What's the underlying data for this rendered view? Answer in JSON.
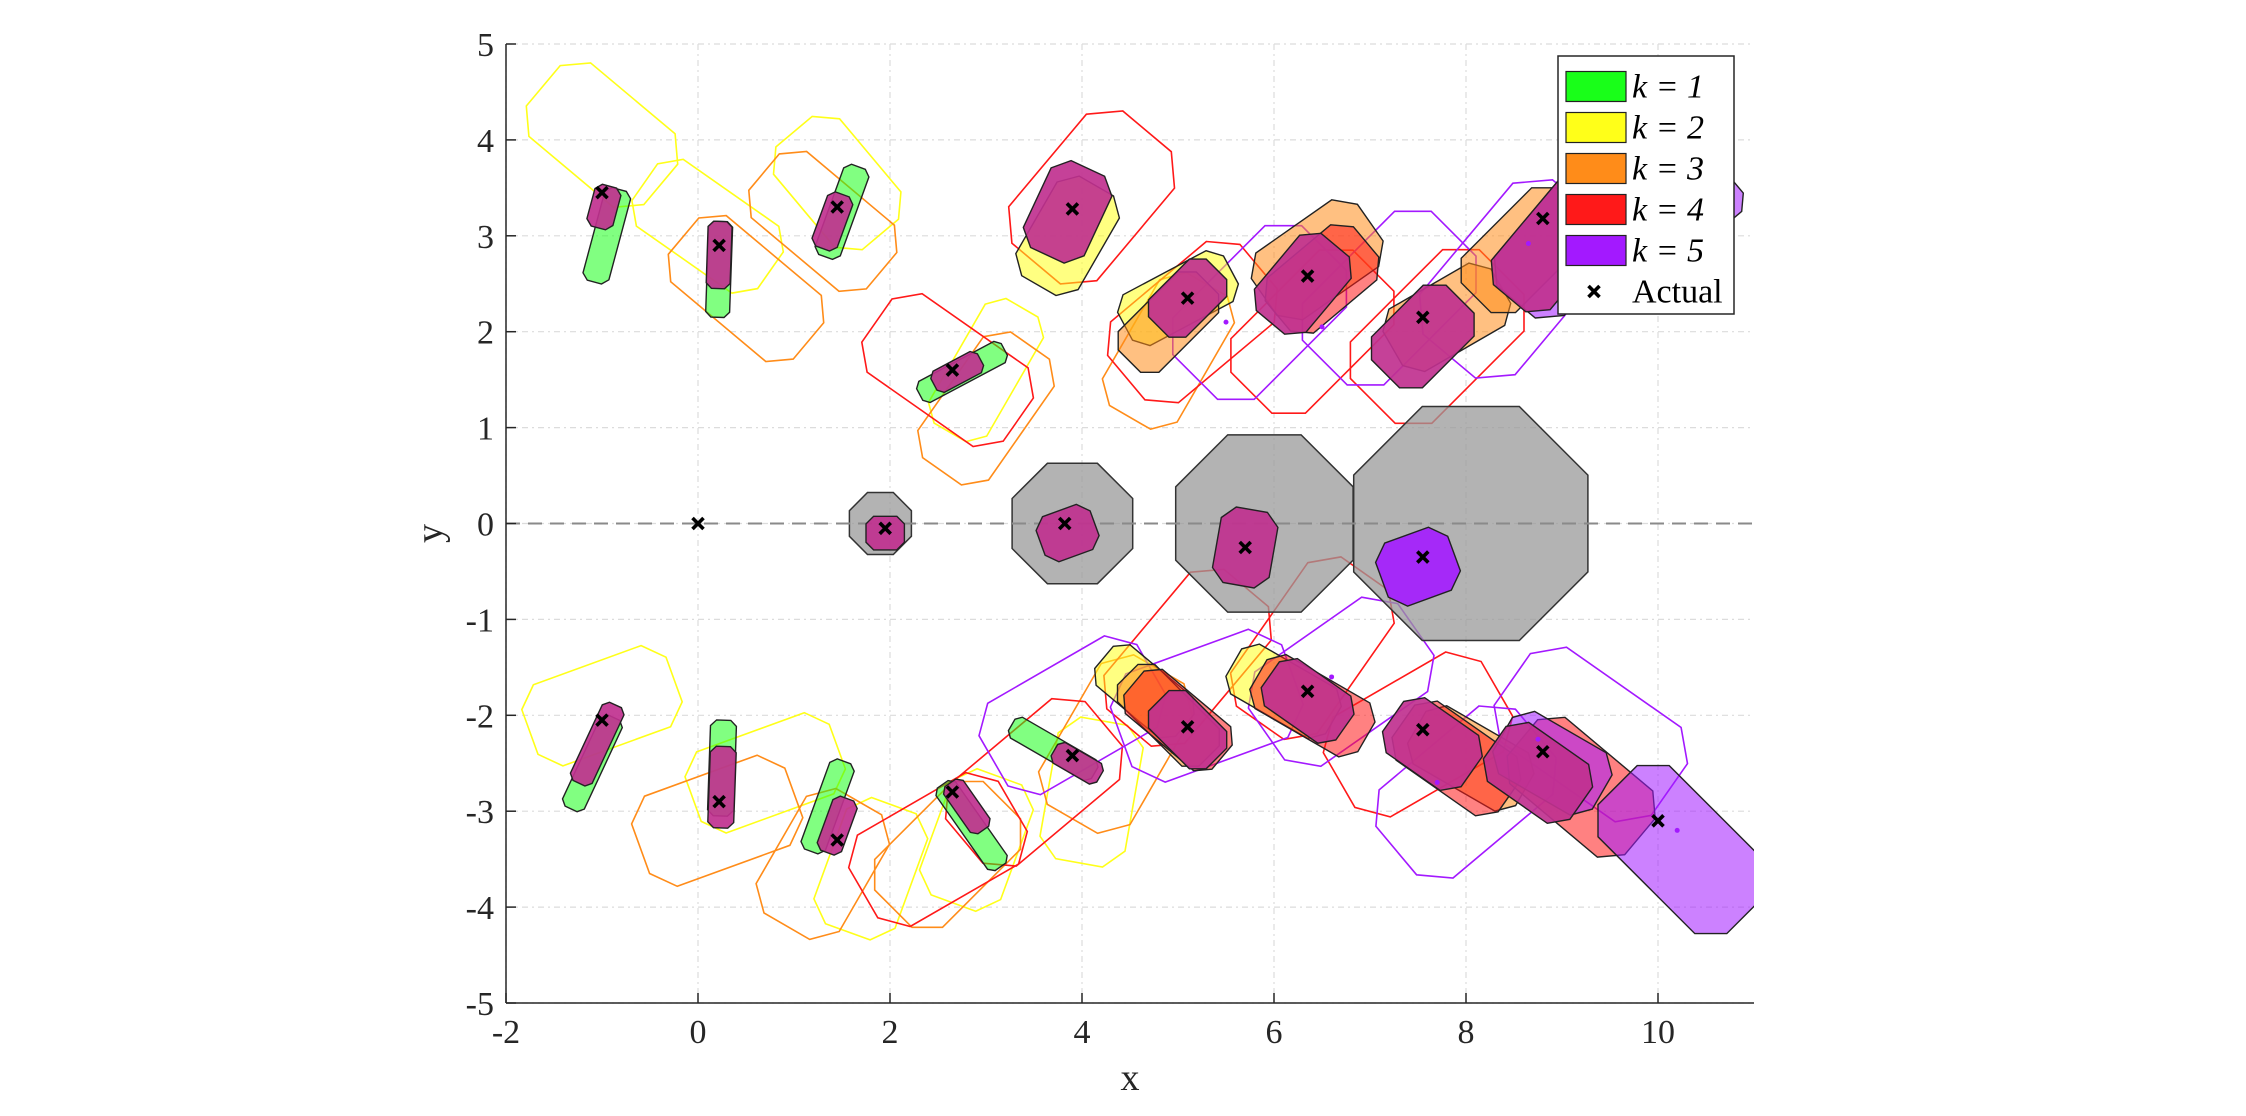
{
  "chart_data": {
    "type": "scatter",
    "xlabel": "x",
    "ylabel": "y",
    "xlim": [
      -2,
      11
    ],
    "ylim": [
      -5,
      5
    ],
    "xticks": [
      -2,
      0,
      2,
      4,
      6,
      8,
      10
    ],
    "yticks": [
      -5,
      -4,
      -3,
      -2,
      -1,
      0,
      1,
      2,
      3,
      4,
      5
    ],
    "xtick_labels": [
      "-2",
      "0",
      "2",
      "4",
      "6",
      "8",
      "10"
    ],
    "ytick_labels": [
      "-5",
      "-4",
      "-3",
      "-2",
      "-1",
      "0",
      "1",
      "2",
      "3",
      "4",
      "5"
    ],
    "grid": true,
    "reference_line": {
      "y": 0,
      "style": "dashed"
    },
    "legend_placement": "top-right",
    "legend": [
      {
        "label": "k = 1",
        "color": "#19ff19"
      },
      {
        "label": "k = 2",
        "color": "#ffff19"
      },
      {
        "label": "k = 3",
        "color": "#ff8c19"
      },
      {
        "label": "k = 4",
        "color": "#ff1919"
      },
      {
        "label": "k = 5",
        "color": "#a319ff"
      },
      {
        "label": "Actual",
        "marker": "x"
      }
    ],
    "overlap_color": "#c0318f",
    "uncertainty_polygons": [
      {
        "center": [
          1.9,
          0
        ],
        "radius": 0.35,
        "sides": 8,
        "color": "#999999"
      },
      {
        "center": [
          3.9,
          0
        ],
        "radius": 0.68,
        "sides": 8,
        "color": "#999999"
      },
      {
        "center": [
          5.9,
          0
        ],
        "radius": 1.0,
        "sides": 8,
        "color": "#999999"
      },
      {
        "center": [
          8.05,
          0
        ],
        "radius": 1.32,
        "sides": 8,
        "color": "#999999"
      }
    ],
    "actual_positions": [
      {
        "x": 0,
        "y": 0
      },
      {
        "x": -1.0,
        "y": 3.45
      },
      {
        "x": 0.22,
        "y": 2.9
      },
      {
        "x": 1.45,
        "y": 3.3
      },
      {
        "x": 2.65,
        "y": 1.6
      },
      {
        "x": 3.9,
        "y": 3.28
      },
      {
        "x": 5.1,
        "y": 2.35
      },
      {
        "x": 6.35,
        "y": 2.58
      },
      {
        "x": 7.55,
        "y": 2.15
      },
      {
        "x": 8.8,
        "y": 3.18
      },
      {
        "x": 1.95,
        "y": -0.05
      },
      {
        "x": 3.82,
        "y": 0
      },
      {
        "x": 5.7,
        "y": -0.25
      },
      {
        "x": 7.55,
        "y": -0.35
      },
      {
        "x": -1.0,
        "y": -2.05
      },
      {
        "x": 0.22,
        "y": -2.9
      },
      {
        "x": 1.45,
        "y": -3.3
      },
      {
        "x": 2.65,
        "y": -2.8
      },
      {
        "x": 3.9,
        "y": -2.42
      },
      {
        "x": 5.1,
        "y": -2.12
      },
      {
        "x": 6.35,
        "y": -1.75
      },
      {
        "x": 7.55,
        "y": -2.15
      },
      {
        "x": 8.8,
        "y": -2.38
      },
      {
        "x": 10.0,
        "y": -3.1
      }
    ],
    "estimates": [
      {
        "k": 1,
        "x": -0.95,
        "y": 3.0,
        "len": 1.0,
        "wid": 0.28,
        "angle": 75
      },
      {
        "k": 1,
        "x": 0.22,
        "y": 2.65,
        "len": 1.0,
        "wid": 0.25,
        "angle": 88
      },
      {
        "k": 1,
        "x": 1.5,
        "y": 3.25,
        "len": 1.0,
        "wid": 0.28,
        "angle": 70
      },
      {
        "k": 1,
        "x": 2.75,
        "y": 1.58,
        "len": 1.0,
        "wid": 0.25,
        "angle": 28
      },
      {
        "k": 1,
        "x": -1.1,
        "y": -2.5,
        "len": 1.05,
        "wid": 0.25,
        "angle": 65
      },
      {
        "k": 1,
        "x": 0.25,
        "y": -2.55,
        "len": 1.0,
        "wid": 0.27,
        "angle": 88
      },
      {
        "k": 1,
        "x": 1.35,
        "y": -2.95,
        "len": 1.0,
        "wid": 0.27,
        "angle": 70
      },
      {
        "k": 1,
        "x": 2.85,
        "y": -3.15,
        "len": 1.05,
        "wid": 0.25,
        "angle": -55
      },
      {
        "k": 1,
        "x": 3.7,
        "y": -2.35,
        "len": 1.0,
        "wid": 0.25,
        "angle": -30
      },
      {
        "k": 2,
        "x": 3.85,
        "y": 3.0,
        "len": 1.2,
        "wid": 0.75,
        "angle": 60
      },
      {
        "k": 2,
        "x": 5.0,
        "y": 2.35,
        "len": 1.25,
        "wid": 0.6,
        "angle": 28
      },
      {
        "k": 2,
        "x": 4.65,
        "y": -1.75,
        "len": 1.1,
        "wid": 0.55,
        "angle": -40
      },
      {
        "k": 2,
        "x": 6.1,
        "y": -1.75,
        "len": 1.2,
        "wid": 0.6,
        "angle": -30
      },
      {
        "k": 3,
        "x": 4.9,
        "y": 2.1,
        "len": 1.15,
        "wid": 0.6,
        "angle": 45
      },
      {
        "k": 3,
        "x": 6.45,
        "y": 2.75,
        "len": 1.35,
        "wid": 0.85,
        "angle": 35
      },
      {
        "k": 3,
        "x": 7.8,
        "y": 2.15,
        "len": 1.3,
        "wid": 0.75,
        "angle": 30
      },
      {
        "k": 3,
        "x": 8.6,
        "y": 2.85,
        "len": 1.4,
        "wid": 0.8,
        "angle": 45
      },
      {
        "k": 3,
        "x": 4.9,
        "y": -2.0,
        "len": 1.2,
        "wid": 0.55,
        "angle": -45
      },
      {
        "k": 3,
        "x": 8.05,
        "y": -2.45,
        "len": 1.3,
        "wid": 0.7,
        "angle": -30
      },
      {
        "k": 4,
        "x": 6.5,
        "y": 2.55,
        "len": 1.2,
        "wid": 0.75,
        "angle": 40
      },
      {
        "k": 4,
        "x": 5.0,
        "y": -2.05,
        "len": 1.2,
        "wid": 0.6,
        "angle": -40
      },
      {
        "k": 4,
        "x": 6.4,
        "y": -1.9,
        "len": 1.3,
        "wid": 0.65,
        "angle": -30
      },
      {
        "k": 4,
        "x": 7.9,
        "y": -2.45,
        "len": 1.35,
        "wid": 0.75,
        "angle": -35
      },
      {
        "k": 4,
        "x": 9.2,
        "y": -2.75,
        "len": 1.6,
        "wid": 0.9,
        "angle": -40
      },
      {
        "k": 5,
        "x": 9.1,
        "y": 3.0,
        "len": 1.8,
        "wid": 0.95,
        "angle": 50
      },
      {
        "k": 5,
        "x": 10.4,
        "y": 3.25,
        "len": 1.0,
        "wid": 0.6,
        "angle": 40
      },
      {
        "k": 5,
        "x": 10.25,
        "y": -3.4,
        "len": 1.9,
        "wid": 1.05,
        "angle": -45
      },
      {
        "k": 5,
        "x": 8.9,
        "y": -2.5,
        "len": 1.2,
        "wid": 0.75,
        "angle": -30
      }
    ],
    "overlap_regions": [
      {
        "x": -0.98,
        "y": 3.3,
        "len": 0.45,
        "wid": 0.28,
        "angle": 75
      },
      {
        "x": 0.22,
        "y": 2.8,
        "len": 0.7,
        "wid": 0.25,
        "angle": 88
      },
      {
        "x": 1.4,
        "y": 3.15,
        "len": 0.6,
        "wid": 0.28,
        "angle": 70
      },
      {
        "x": 2.7,
        "y": 1.58,
        "len": 0.55,
        "wid": 0.25,
        "angle": 28
      },
      {
        "x": 3.85,
        "y": 3.25,
        "len": 1.0,
        "wid": 0.7,
        "angle": 65
      },
      {
        "x": 5.1,
        "y": 2.35,
        "len": 0.85,
        "wid": 0.55,
        "angle": 45
      },
      {
        "x": 6.3,
        "y": 2.5,
        "len": 1.05,
        "wid": 0.7,
        "angle": 50
      },
      {
        "x": 7.55,
        "y": 1.95,
        "len": 1.1,
        "wid": 0.75,
        "angle": 45
      },
      {
        "x": 9.0,
        "y": 3.0,
        "len": 1.7,
        "wid": 0.8,
        "angle": 50
      },
      {
        "x": -1.05,
        "y": -2.3,
        "len": 0.9,
        "wid": 0.25,
        "angle": 65
      },
      {
        "x": 0.25,
        "y": -2.75,
        "len": 0.85,
        "wid": 0.27,
        "angle": 88
      },
      {
        "x": 1.45,
        "y": -3.15,
        "len": 0.6,
        "wid": 0.27,
        "angle": 70
      },
      {
        "x": 2.8,
        "y": -2.95,
        "len": 0.6,
        "wid": 0.25,
        "angle": -55
      },
      {
        "x": 3.95,
        "y": -2.5,
        "len": 0.55,
        "wid": 0.25,
        "angle": -30
      },
      {
        "x": 5.1,
        "y": -2.15,
        "len": 0.85,
        "wid": 0.55,
        "angle": -45
      },
      {
        "x": 6.35,
        "y": -1.85,
        "len": 0.95,
        "wid": 0.6,
        "angle": -35
      },
      {
        "x": 7.65,
        "y": -2.3,
        "len": 1.0,
        "wid": 0.7,
        "angle": -35
      },
      {
        "x": 8.75,
        "y": -2.6,
        "len": 1.1,
        "wid": 0.75,
        "angle": -35
      },
      {
        "x": 1.95,
        "y": -0.1,
        "len": 0.4,
        "wid": 0.35,
        "angle": 0
      },
      {
        "x": 3.85,
        "y": -0.1,
        "len": 0.6,
        "wid": 0.5,
        "angle": 20
      },
      {
        "x": 5.7,
        "y": -0.25,
        "len": 0.8,
        "wid": 0.6,
        "angle": 80
      },
      {
        "x": 7.5,
        "y": -0.45,
        "len": 0.8,
        "wid": 0.7,
        "angle": 20,
        "k": 5
      }
    ],
    "outline_regions": [
      {
        "k": 2,
        "x": -1.0,
        "y": 4.05,
        "len": 1.6,
        "wid": 1.0,
        "angle": -40
      },
      {
        "k": 2,
        "x": 0.1,
        "y": 3.1,
        "len": 1.6,
        "wid": 0.85,
        "angle": -35
      },
      {
        "k": 2,
        "x": 1.45,
        "y": 3.55,
        "len": 1.4,
        "wid": 0.9,
        "angle": -50
      },
      {
        "k": 2,
        "x": 3.0,
        "y": 1.6,
        "len": 1.5,
        "wid": 0.7,
        "angle": 60
      },
      {
        "k": 2,
        "x": -1.0,
        "y": -1.9,
        "len": 1.6,
        "wid": 0.9,
        "angle": 20
      },
      {
        "k": 2,
        "x": 0.7,
        "y": -2.6,
        "len": 1.6,
        "wid": 0.9,
        "angle": 20
      },
      {
        "k": 2,
        "x": 1.8,
        "y": -3.6,
        "len": 1.4,
        "wid": 0.9,
        "angle": 70
      },
      {
        "k": 2,
        "x": 2.9,
        "y": -3.3,
        "len": 1.4,
        "wid": 0.9,
        "angle": 70
      },
      {
        "k": 2,
        "x": 4.1,
        "y": -2.8,
        "len": 1.5,
        "wid": 0.9,
        "angle": 80
      },
      {
        "k": 3,
        "x": 0.5,
        "y": 2.45,
        "len": 1.7,
        "wid": 0.9,
        "angle": -40
      },
      {
        "k": 3,
        "x": 1.3,
        "y": 3.15,
        "len": 1.6,
        "wid": 0.9,
        "angle": -40
      },
      {
        "k": 3,
        "x": 3.0,
        "y": 1.2,
        "len": 1.6,
        "wid": 0.9,
        "angle": 55
      },
      {
        "k": 3,
        "x": 4.9,
        "y": 1.8,
        "len": 1.6,
        "wid": 0.9,
        "angle": 60
      },
      {
        "k": 3,
        "x": 0.2,
        "y": -3.1,
        "len": 1.7,
        "wid": 1.0,
        "angle": 20
      },
      {
        "k": 3,
        "x": 1.3,
        "y": -3.55,
        "len": 1.5,
        "wid": 1.0,
        "angle": 60
      },
      {
        "k": 3,
        "x": 2.6,
        "y": -3.45,
        "len": 1.6,
        "wid": 1.0,
        "angle": 45
      },
      {
        "k": 3,
        "x": 4.35,
        "y": -2.3,
        "len": 1.8,
        "wid": 1.1,
        "angle": 60
      },
      {
        "k": 4,
        "x": 4.1,
        "y": 3.4,
        "len": 1.8,
        "wid": 1.2,
        "angle": 50
      },
      {
        "k": 4,
        "x": 2.6,
        "y": 1.6,
        "len": 1.8,
        "wid": 1.0,
        "angle": -35
      },
      {
        "k": 4,
        "x": 5.15,
        "y": 2.1,
        "len": 1.8,
        "wid": 1.1,
        "angle": 40
      },
      {
        "k": 4,
        "x": 6.4,
        "y": 2.0,
        "len": 1.8,
        "wid": 1.1,
        "angle": 45
      },
      {
        "k": 4,
        "x": 7.7,
        "y": 1.95,
        "len": 1.9,
        "wid": 1.2,
        "angle": 45
      },
      {
        "k": 4,
        "x": 2.5,
        "y": -3.4,
        "len": 1.8,
        "wid": 1.1,
        "angle": 30
      },
      {
        "k": 4,
        "x": 3.5,
        "y": -2.7,
        "len": 1.9,
        "wid": 1.1,
        "angle": 40
      },
      {
        "k": 4,
        "x": 5.1,
        "y": -1.4,
        "len": 1.9,
        "wid": 1.1,
        "angle": 50
      },
      {
        "k": 4,
        "x": 6.4,
        "y": -1.3,
        "len": 1.9,
        "wid": 1.1,
        "angle": 55
      },
      {
        "k": 4,
        "x": 7.5,
        "y": -2.2,
        "len": 1.9,
        "wid": 1.2,
        "angle": 30
      },
      {
        "k": 5,
        "x": 5.85,
        "y": 2.2,
        "len": 1.9,
        "wid": 1.2,
        "angle": 45
      },
      {
        "k": 5,
        "x": 7.2,
        "y": 2.35,
        "len": 1.9,
        "wid": 1.2,
        "angle": 45
      },
      {
        "k": 5,
        "x": 8.5,
        "y": 2.55,
        "len": 2.1,
        "wid": 1.3,
        "angle": 50
      },
      {
        "k": 5,
        "x": 3.9,
        "y": -2.0,
        "len": 1.9,
        "wid": 1.1,
        "angle": 30
      },
      {
        "k": 5,
        "x": 5.3,
        "y": -1.9,
        "len": 1.9,
        "wid": 1.2,
        "angle": 20
      },
      {
        "k": 5,
        "x": 6.7,
        "y": -1.65,
        "len": 1.9,
        "wid": 1.2,
        "angle": 35
      },
      {
        "k": 5,
        "x": 8.0,
        "y": -2.8,
        "len": 1.9,
        "wid": 1.2,
        "angle": 40
      },
      {
        "k": 5,
        "x": 9.3,
        "y": -2.2,
        "len": 2.0,
        "wid": 1.2,
        "angle": -35
      }
    ],
    "estimate_dots": [
      {
        "k": 5,
        "x": 5.5,
        "y": 2.1
      },
      {
        "k": 5,
        "x": 6.5,
        "y": 2.05
      },
      {
        "k": 5,
        "x": 8.65,
        "y": 2.92
      },
      {
        "k": 5,
        "x": 6.6,
        "y": -1.6
      },
      {
        "k": 5,
        "x": 7.7,
        "y": -2.7
      },
      {
        "k": 5,
        "x": 8.75,
        "y": -2.25
      },
      {
        "k": 5,
        "x": 10.2,
        "y": -3.2
      }
    ]
  }
}
